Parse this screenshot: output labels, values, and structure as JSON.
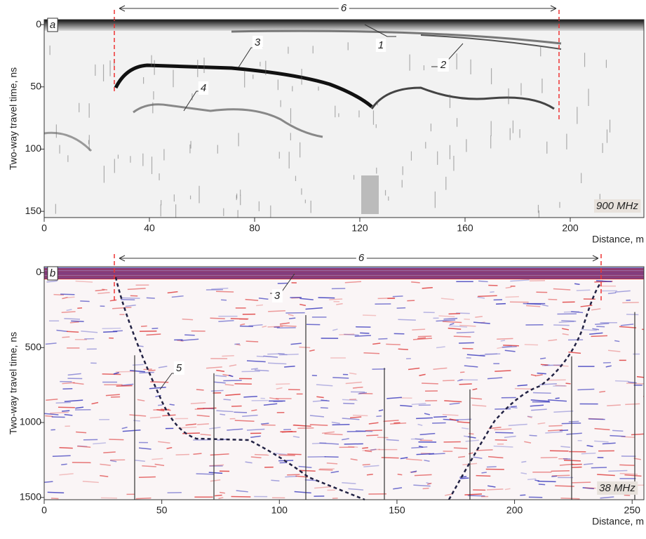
{
  "chart_data": [
    {
      "type": "radargram",
      "ylabel": "Two-way travel time, ns",
      "xlabel": "Distance, m",
      "xlim": [
        0,
        228
      ],
      "xticks": [
        0,
        40,
        80,
        120,
        160,
        200
      ],
      "ylim": [
        -4,
        155
      ],
      "yticks": [
        0,
        50,
        100,
        150
      ],
      "annotations": [
        "a",
        "1",
        "2",
        "3",
        "4",
        "6",
        "900 MHz"
      ]
    },
    {
      "type": "radargram",
      "ylabel": "Two-way travel time, ns",
      "xlabel": "Distance, m",
      "xlim": [
        0,
        255
      ],
      "xticks": [
        0,
        50,
        100,
        150,
        200,
        250
      ],
      "ylim": [
        -40,
        1515
      ],
      "yticks": [
        0,
        500,
        1000,
        1500
      ],
      "annotations": [
        "b",
        "3",
        "5",
        "6",
        "38 MHz"
      ]
    }
  ]
}
